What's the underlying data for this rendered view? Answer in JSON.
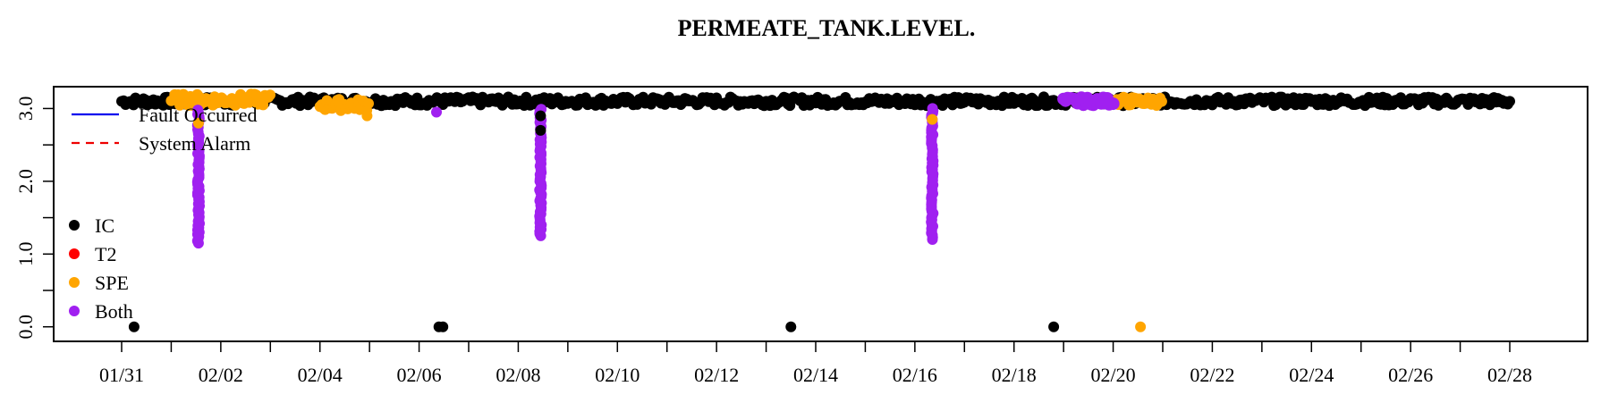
{
  "chart_data": {
    "type": "scatter",
    "title": "PERMEATE_TANK.LEVEL.",
    "xlabel": "",
    "ylabel": "",
    "x_start": "01/31",
    "x_end": "02/28",
    "x_tick_labels": [
      "01/31",
      "02/02",
      "02/04",
      "02/06",
      "02/08",
      "02/10",
      "02/12",
      "02/14",
      "02/16",
      "02/18",
      "02/20",
      "02/22",
      "02/24",
      "02/26",
      "02/28"
    ],
    "y_tick_labels": [
      "0.0",
      "1.0",
      "2.0",
      "3.0"
    ],
    "ylim": [
      -0.2,
      3.3
    ],
    "grid": false,
    "legend_position": "top-left",
    "lines_legend": [
      {
        "name": "Fault Occurred",
        "color": "#0000ee",
        "style": "solid"
      },
      {
        "name": "System Alarm",
        "color": "#ee0000",
        "style": "dashed"
      }
    ],
    "point_legend": [
      {
        "name": "IC",
        "color": "#000000"
      },
      {
        "name": "T2",
        "color": "#ff0000"
      },
      {
        "name": "SPE",
        "color": "#ffa500"
      },
      {
        "name": "Both",
        "color": "#a020f0"
      }
    ],
    "series": [
      {
        "name": "IC",
        "color": "#000000",
        "baseline_segments": [
          {
            "x_start": "01/31",
            "x_end": "02/28",
            "y": 3.1,
            "jitter": 0.06
          }
        ],
        "points": [
          {
            "x": "01/31",
            "y": 0.0
          },
          {
            "x": "02/06",
            "y": 0.0
          },
          {
            "x": "02/13",
            "y": 0.0
          },
          {
            "x": "02/18",
            "y": 0.0
          },
          {
            "x": "02/08",
            "y": 2.7
          },
          {
            "x": "02/08",
            "y": 2.9
          }
        ]
      },
      {
        "name": "SPE",
        "color": "#ffa500",
        "baseline_segments": [
          {
            "x_start": "02/01",
            "x_end": "02/03",
            "y": 3.12,
            "jitter": 0.08
          },
          {
            "x_start": "02/04",
            "x_end": "02/05",
            "y": 3.05,
            "jitter": 0.08
          },
          {
            "x_start": "02/20",
            "x_end": "02/21",
            "y": 3.1,
            "jitter": 0.06
          }
        ],
        "points": [
          {
            "x": "02/01",
            "y": 2.8
          },
          {
            "x": "02/04",
            "y": 2.9
          },
          {
            "x": "02/16",
            "y": 2.85
          },
          {
            "x": "02/20",
            "y": 0.0
          }
        ]
      },
      {
        "name": "Both",
        "color": "#a020f0",
        "baseline_segments": [
          {
            "x_start": "02/19",
            "x_end": "02/20",
            "y": 3.1,
            "jitter": 0.05
          }
        ],
        "drops": [
          {
            "x": "02/01",
            "y_top": 3.0,
            "y_bottom": 1.15
          },
          {
            "x": "02/08",
            "y_top": 3.0,
            "y_bottom": 1.25
          },
          {
            "x": "02/16",
            "y_top": 3.0,
            "y_bottom": 1.2
          }
        ],
        "points": [
          {
            "x": "02/06",
            "y": 2.95
          }
        ]
      }
    ]
  }
}
